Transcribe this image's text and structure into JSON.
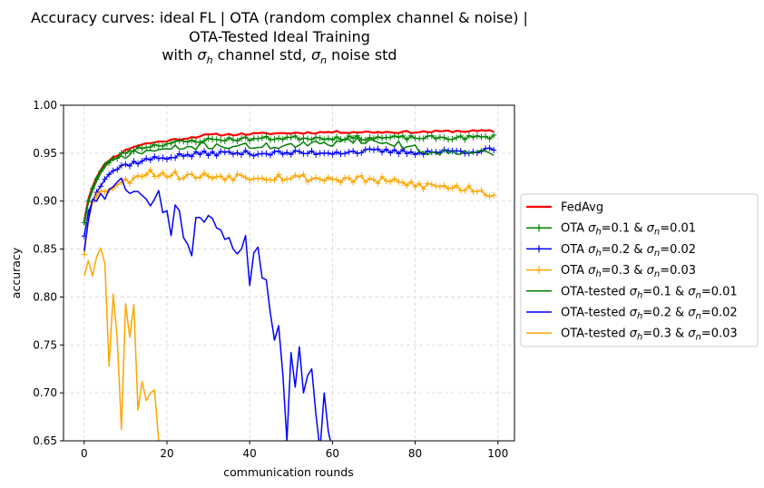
{
  "chart_data": {
    "type": "line",
    "title_lines": [
      "Accuracy curves: ideal FL | OTA (random complex channel & noise) |",
      "OTA-Tested Ideal Training",
      "with σ_h channel std, σ_n noise std"
    ],
    "xlabel": "communication rounds",
    "ylabel": "accuracy",
    "xlim": [
      -5,
      104
    ],
    "ylim": [
      0.65,
      1.0
    ],
    "xticks": [
      0,
      20,
      40,
      60,
      80,
      100
    ],
    "yticks": [
      0.65,
      0.7,
      0.75,
      0.8,
      0.85,
      0.9,
      0.95,
      1.0
    ],
    "grid": true,
    "legend_placement": "right-outside",
    "series": [
      {
        "name": "FedAvg",
        "label_main": "FedAvg",
        "label_parts": [],
        "color": "#ff0000",
        "marker": "none",
        "width": 2.2,
        "anchors": [
          [
            0,
            0.879
          ],
          [
            1,
            0.902
          ],
          [
            2,
            0.915
          ],
          [
            3,
            0.925
          ],
          [
            4,
            0.932
          ],
          [
            5,
            0.938
          ],
          [
            6,
            0.943
          ],
          [
            8,
            0.948
          ],
          [
            10,
            0.953
          ],
          [
            12,
            0.957
          ],
          [
            15,
            0.96
          ],
          [
            20,
            0.963
          ],
          [
            25,
            0.966
          ],
          [
            30,
            0.969
          ],
          [
            40,
            0.97
          ],
          [
            50,
            0.971
          ],
          [
            60,
            0.972
          ],
          [
            70,
            0.972
          ],
          [
            80,
            0.972
          ],
          [
            90,
            0.973
          ],
          [
            99,
            0.973
          ]
        ],
        "noise_amp": 0.0012,
        "seed": 11
      },
      {
        "name": "OTA σh=0.1 & σn=0.01",
        "label_main": "OTA",
        "label_parts": [
          [
            "σ",
            "h",
            "=0.1 & "
          ],
          [
            "σ",
            "n",
            "=0.01"
          ]
        ],
        "color": "#008000",
        "marker": "plus",
        "width": 1.5,
        "anchors": [
          [
            0,
            0.878
          ],
          [
            1,
            0.9
          ],
          [
            2,
            0.913
          ],
          [
            3,
            0.923
          ],
          [
            4,
            0.93
          ],
          [
            5,
            0.936
          ],
          [
            6,
            0.941
          ],
          [
            8,
            0.946
          ],
          [
            10,
            0.951
          ],
          [
            12,
            0.954
          ],
          [
            15,
            0.957
          ],
          [
            20,
            0.96
          ],
          [
            25,
            0.962
          ],
          [
            30,
            0.964
          ],
          [
            40,
            0.965
          ],
          [
            50,
            0.966
          ],
          [
            60,
            0.966
          ],
          [
            70,
            0.966
          ],
          [
            80,
            0.966
          ],
          [
            90,
            0.966
          ],
          [
            99,
            0.967
          ]
        ],
        "noise_amp": 0.0022,
        "seed": 23
      },
      {
        "name": "OTA σh=0.2 & σn=0.02",
        "label_main": "OTA",
        "label_parts": [
          [
            "σ",
            "h",
            "=0.2 & "
          ],
          [
            "σ",
            "n",
            "=0.02"
          ]
        ],
        "color": "#0000ff",
        "marker": "plus",
        "width": 1.5,
        "anchors": [
          [
            0,
            0.864
          ],
          [
            1,
            0.888
          ],
          [
            2,
            0.9
          ],
          [
            3,
            0.91
          ],
          [
            4,
            0.918
          ],
          [
            5,
            0.924
          ],
          [
            6,
            0.929
          ],
          [
            8,
            0.934
          ],
          [
            10,
            0.938
          ],
          [
            12,
            0.94
          ],
          [
            15,
            0.943
          ],
          [
            20,
            0.946
          ],
          [
            25,
            0.948
          ],
          [
            30,
            0.95
          ],
          [
            40,
            0.95
          ],
          [
            50,
            0.95
          ],
          [
            60,
            0.951
          ],
          [
            70,
            0.952
          ],
          [
            80,
            0.951
          ],
          [
            90,
            0.952
          ],
          [
            99,
            0.953
          ]
        ],
        "noise_amp": 0.0028,
        "seed": 37
      },
      {
        "name": "OTA σh=0.3 & σn=0.03",
        "label_main": "OTA",
        "label_parts": [
          [
            "σ",
            "h",
            "=0.3 & "
          ],
          [
            "σ",
            "n",
            "=0.03"
          ]
        ],
        "color": "#ffa500",
        "marker": "plus",
        "width": 1.5,
        "anchors": [
          [
            0,
            0.845
          ],
          [
            1,
            0.88
          ],
          [
            2,
            0.9
          ],
          [
            3,
            0.905
          ],
          [
            5,
            0.912
          ],
          [
            7,
            0.916
          ],
          [
            10,
            0.92
          ],
          [
            13,
            0.928
          ],
          [
            15,
            0.93
          ],
          [
            20,
            0.928
          ],
          [
            25,
            0.926
          ],
          [
            30,
            0.926
          ],
          [
            40,
            0.926
          ],
          [
            50,
            0.925
          ],
          [
            60,
            0.923
          ],
          [
            70,
            0.922
          ],
          [
            80,
            0.917
          ],
          [
            90,
            0.914
          ],
          [
            96,
            0.912
          ],
          [
            98,
            0.905
          ],
          [
            99,
            0.91
          ]
        ],
        "noise_amp": 0.0045,
        "seed": 53
      },
      {
        "name": "OTA-tested σh=0.1 & σn=0.01",
        "label_main": "OTA-tested",
        "label_parts": [
          [
            "σ",
            "h",
            "=0.1 & "
          ],
          [
            "σ",
            "n",
            "=0.01"
          ]
        ],
        "color": "#008000",
        "marker": "none",
        "width": 1.5,
        "anchors": [
          [
            0,
            0.876
          ],
          [
            1,
            0.898
          ],
          [
            2,
            0.911
          ],
          [
            3,
            0.921
          ],
          [
            4,
            0.928
          ],
          [
            5,
            0.934
          ],
          [
            6,
            0.939
          ],
          [
            8,
            0.944
          ],
          [
            10,
            0.948
          ],
          [
            12,
            0.95
          ],
          [
            15,
            0.952
          ],
          [
            20,
            0.954
          ],
          [
            25,
            0.956
          ],
          [
            30,
            0.958
          ],
          [
            40,
            0.957
          ],
          [
            50,
            0.958
          ],
          [
            60,
            0.96
          ],
          [
            62,
            0.965
          ],
          [
            70,
            0.962
          ],
          [
            75,
            0.96
          ],
          [
            80,
            0.955
          ],
          [
            84,
            0.95
          ],
          [
            90,
            0.952
          ],
          [
            95,
            0.953
          ],
          [
            99,
            0.947
          ]
        ],
        "noise_amp": 0.0035,
        "seed": 71
      },
      {
        "name": "OTA-tested σh=0.2 & σn=0.02",
        "label_main": "OTA-tested",
        "label_parts": [
          [
            "σ",
            "h",
            "=0.2 & "
          ],
          [
            "σ",
            "n",
            "=0.02"
          ]
        ],
        "color": "#0000ff",
        "marker": "none",
        "width": 1.5,
        "anchors": [
          [
            0,
            0.848
          ],
          [
            1,
            0.88
          ],
          [
            2,
            0.902
          ],
          [
            3,
            0.9
          ],
          [
            4,
            0.908
          ],
          [
            5,
            0.902
          ],
          [
            6,
            0.912
          ],
          [
            7,
            0.915
          ],
          [
            8,
            0.92
          ],
          [
            9,
            0.924
          ],
          [
            10,
            0.912
          ],
          [
            11,
            0.908
          ],
          [
            12,
            0.91
          ],
          [
            13,
            0.91
          ],
          [
            14,
            0.906
          ],
          [
            15,
            0.902
          ],
          [
            16,
            0.895
          ],
          [
            17,
            0.902
          ],
          [
            18,
            0.911
          ],
          [
            19,
            0.888
          ],
          [
            20,
            0.89
          ],
          [
            21,
            0.864
          ],
          [
            22,
            0.896
          ],
          [
            23,
            0.89
          ],
          [
            24,
            0.862
          ],
          [
            25,
            0.855
          ],
          [
            26,
            0.843
          ],
          [
            27,
            0.883
          ],
          [
            28,
            0.883
          ],
          [
            29,
            0.878
          ],
          [
            30,
            0.885
          ],
          [
            31,
            0.882
          ],
          [
            32,
            0.872
          ],
          [
            33,
            0.87
          ],
          [
            34,
            0.86
          ],
          [
            35,
            0.862
          ],
          [
            36,
            0.85
          ],
          [
            37,
            0.845
          ],
          [
            38,
            0.85
          ],
          [
            39,
            0.864
          ],
          [
            40,
            0.812
          ],
          [
            41,
            0.846
          ],
          [
            42,
            0.852
          ],
          [
            43,
            0.82
          ],
          [
            44,
            0.818
          ],
          [
            45,
            0.783
          ],
          [
            46,
            0.755
          ],
          [
            47,
            0.77
          ],
          [
            48,
            0.72
          ],
          [
            49,
            0.65
          ],
          [
            50,
            0.742
          ],
          [
            51,
            0.706
          ],
          [
            52,
            0.748
          ],
          [
            53,
            0.7
          ],
          [
            54,
            0.718
          ],
          [
            55,
            0.725
          ],
          [
            56,
            0.678
          ],
          [
            57,
            0.64
          ],
          [
            58,
            0.7
          ],
          [
            59,
            0.66
          ],
          [
            60,
            0.64
          ]
        ],
        "noise_amp": 0,
        "seed": 0
      },
      {
        "name": "OTA-tested σh=0.3 & σn=0.03",
        "label_main": "OTA-tested",
        "label_parts": [
          [
            "σ",
            "h",
            "=0.3 & "
          ],
          [
            "σ",
            "n",
            "=0.03"
          ]
        ],
        "color": "#ffa500",
        "marker": "none",
        "width": 1.5,
        "anchors": [
          [
            0,
            0.822
          ],
          [
            1,
            0.838
          ],
          [
            2,
            0.822
          ],
          [
            3,
            0.842
          ],
          [
            4,
            0.851
          ],
          [
            5,
            0.835
          ],
          [
            6,
            0.728
          ],
          [
            7,
            0.803
          ],
          [
            8,
            0.755
          ],
          [
            9,
            0.662
          ],
          [
            10,
            0.793
          ],
          [
            11,
            0.758
          ],
          [
            12,
            0.792
          ],
          [
            13,
            0.682
          ],
          [
            14,
            0.712
          ],
          [
            15,
            0.692
          ],
          [
            16,
            0.7
          ],
          [
            17,
            0.703
          ],
          [
            18,
            0.65
          ],
          [
            19,
            0.62
          ]
        ],
        "noise_amp": 0,
        "seed": 0
      }
    ]
  }
}
